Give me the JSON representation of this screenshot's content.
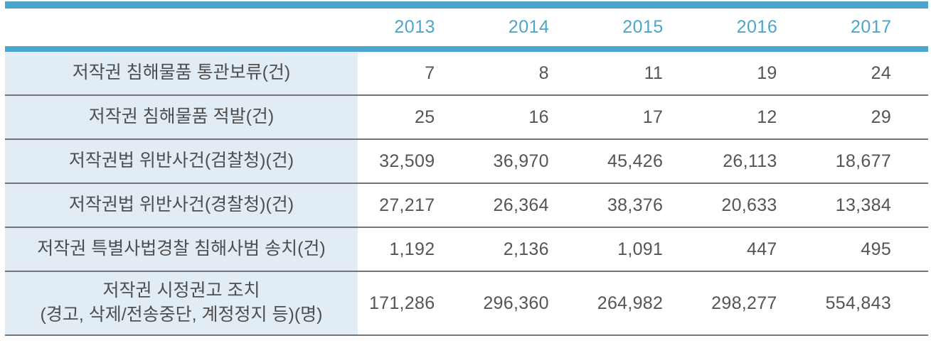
{
  "table": {
    "title": "copyright-infringement-statistics-by-year",
    "accent_color": "#4BA5CD",
    "label_background_color": "#E2ECF4",
    "separator_color": "#717579",
    "years": [
      "2013",
      "2014",
      "2015",
      "2016",
      "2017"
    ],
    "rows": [
      {
        "label": "저작권 침해물품 통관보류(건)",
        "values": [
          "7",
          "8",
          "11",
          "19",
          "24"
        ]
      },
      {
        "label": "저작권 침해물품 적발(건)",
        "values": [
          "25",
          "16",
          "17",
          "12",
          "29"
        ]
      },
      {
        "label": "저작권법 위반사건(검찰청)(건)",
        "values": [
          "32,509",
          "36,970",
          "45,426",
          "26,113",
          "18,677"
        ]
      },
      {
        "label": "저작권법 위반사건(경찰청)(건)",
        "values": [
          "27,217",
          "26,364",
          "38,376",
          "20,633",
          "13,384"
        ]
      },
      {
        "label": "저작권 특별사법경찰 침해사범 송치(건)",
        "values": [
          "1,192",
          "2,136",
          "1,091",
          "447",
          "495"
        ]
      },
      {
        "label": "저작권 시정권고 조치",
        "label_line2": "(경고, 삭제/전송중단, 계정정지 등)(명)",
        "values": [
          "171,286",
          "296,360",
          "264,982",
          "298,277",
          "554,843"
        ]
      }
    ]
  }
}
